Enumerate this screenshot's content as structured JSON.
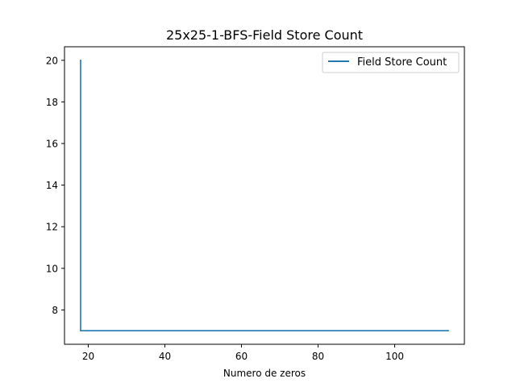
{
  "chart_data": {
    "type": "line",
    "title": "25x25-1-BFS-Field Store Count",
    "xlabel": "Numero de zeros",
    "ylabel": "",
    "xlim": [
      13.8,
      118.2
    ],
    "ylim": [
      6.35,
      20.65
    ],
    "xticks": [
      20,
      40,
      60,
      80,
      100
    ],
    "yticks": [
      8,
      10,
      12,
      14,
      16,
      18,
      20
    ],
    "legend": "top-right",
    "grid": false,
    "series": [
      {
        "name": "Field Store Count",
        "color": "#1f77b4",
        "x": [
          18,
          18,
          114
        ],
        "y": [
          20,
          7,
          7
        ]
      }
    ]
  }
}
